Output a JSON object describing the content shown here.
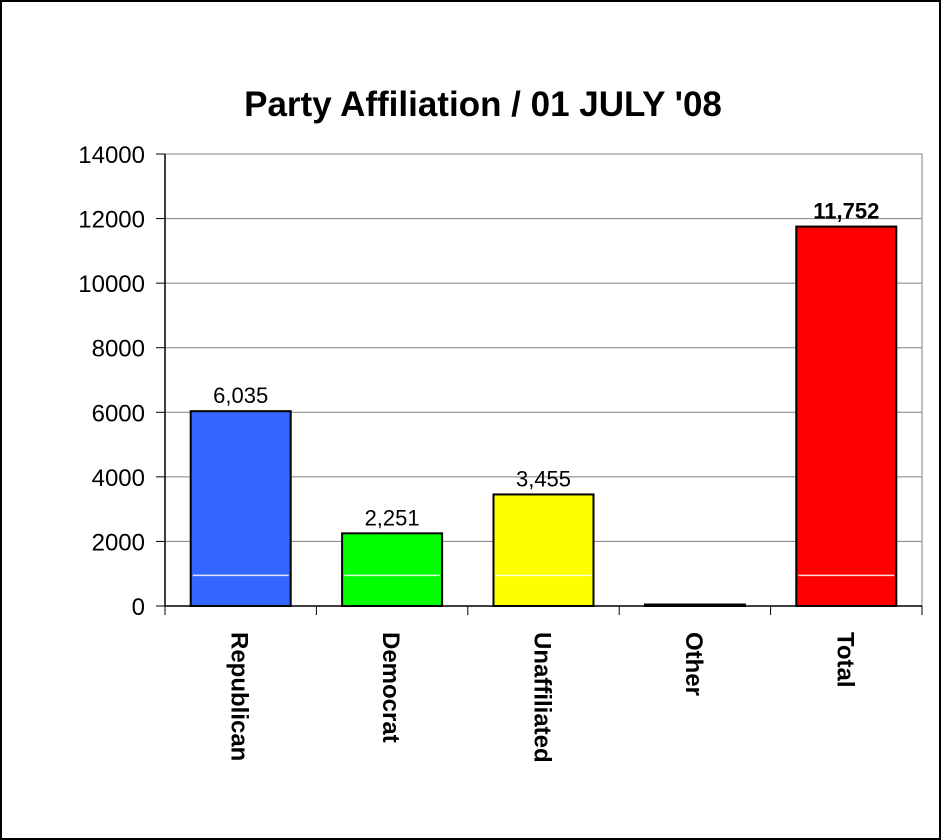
{
  "chart_data": {
    "type": "bar",
    "title": "Party Affiliation / 01 JULY '08",
    "xlabel": "",
    "ylabel": "",
    "categories": [
      "Republican",
      "Democrat",
      "Unaffiliated",
      "Other",
      "Total"
    ],
    "values": [
      6035,
      2251,
      3455,
      0,
      11752
    ],
    "data_labels": [
      "6,035",
      "2,251",
      "3,455",
      "",
      "11,752"
    ],
    "bar_colors": [
      "#3366ff",
      "#00ff00",
      "#ffff00",
      "#c0c0c0",
      "#ff0000"
    ],
    "ylim": [
      0,
      14000
    ],
    "yticks": [
      0,
      2000,
      4000,
      6000,
      8000,
      10000,
      12000,
      14000
    ],
    "ytick_labels": [
      "0",
      "2000",
      "4000",
      "6000",
      "8000",
      "10000",
      "12000",
      "14000"
    ],
    "grid": true,
    "legend": "none"
  }
}
